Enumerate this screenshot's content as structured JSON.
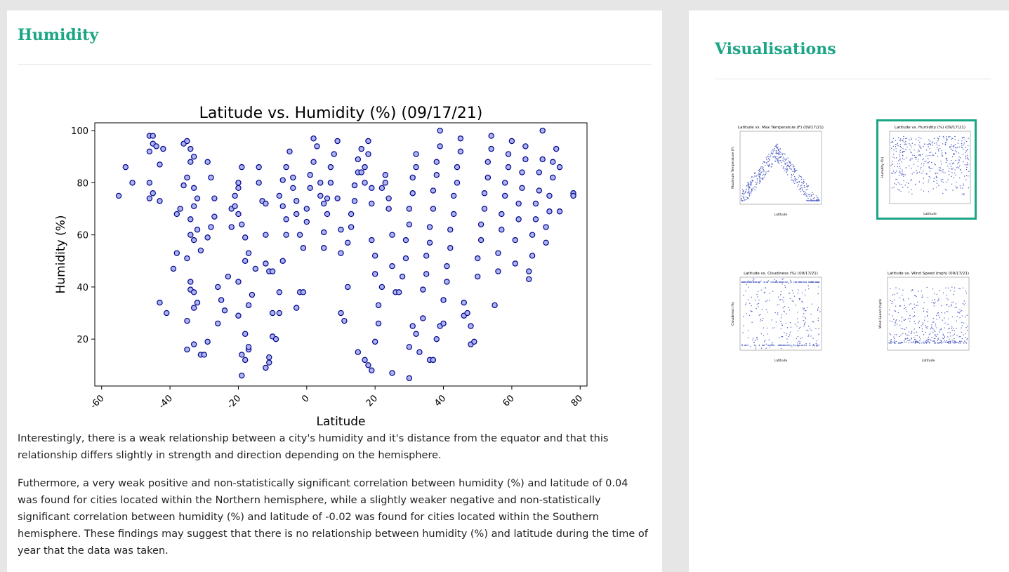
{
  "main": {
    "title": "Humidity",
    "paragraphs": [
      "Interestingly, there is a weak relationship between a city's humidity and it's distance from the equator and that this relationship differs slightly in strength and direction depending on the hemisphere.",
      "Futhermore, a very weak positive and non-statistically significant correlation between humidity (%) and latitude of 0.04 was found for cities located within the Northern hemisphere, while a slightly weaker negative and non-statistically significant correlation between humidity (%) and latitude of -0.02 was found for cities located within the Southern hemisphere. These findings may suggest that there is no relationship between humidity (%) and latitude during the time of year that the data was taken."
    ]
  },
  "sidebar": {
    "title": "Visualisations",
    "thumbnails": [
      {
        "title": "Latitude vs. Max Temperature (F) (09/17/21)",
        "ylabel": "Maximum Temperature (F)",
        "xlabel": "Latitude",
        "selected": false
      },
      {
        "title": "Latitude vs. Humidity (%) (09/17/21)",
        "ylabel": "Humidity (%)",
        "xlabel": "Latitude",
        "selected": true
      },
      {
        "title": "Latitude vs. Cloudiness (%) (09/17/21)",
        "ylabel": "Cloudiness (%)",
        "xlabel": "Latitude",
        "selected": false
      },
      {
        "title": "Latitude vs. Wind Speed (mph) (09/17/21)",
        "ylabel": "Wind Speed (mph)",
        "xlabel": "Latitude",
        "selected": false
      }
    ]
  },
  "colors": {
    "accent": "#1aa585",
    "marker_fill": "#aab4f0",
    "marker_edge": "#00008b",
    "thumb_marker": "#4a5bc4"
  },
  "chart_data": {
    "type": "scatter",
    "title": "Latitude vs. Humidity (%) (09/17/21)",
    "xlabel": "Latitude",
    "ylabel": "Humidity (%)",
    "xlim": [
      -62,
      82
    ],
    "ylim": [
      2,
      103
    ],
    "xticks": [
      -60,
      -40,
      -20,
      0,
      20,
      40,
      60,
      80
    ],
    "yticks": [
      20,
      40,
      60,
      80,
      100
    ],
    "grid": false,
    "points": [
      [
        -55,
        75
      ],
      [
        -53,
        86
      ],
      [
        -51,
        80
      ],
      [
        -46,
        98
      ],
      [
        -45,
        98
      ],
      [
        -45,
        95
      ],
      [
        -44,
        94
      ],
      [
        -46,
        92
      ],
      [
        -46,
        80
      ],
      [
        -45,
        76
      ],
      [
        -46,
        74
      ],
      [
        -43,
        87
      ],
      [
        -42,
        93
      ],
      [
        -43,
        73
      ],
      [
        -43,
        34
      ],
      [
        -41,
        30
      ],
      [
        -39,
        47
      ],
      [
        -38,
        53
      ],
      [
        -38,
        68
      ],
      [
        -37,
        70
      ],
      [
        -36,
        79
      ],
      [
        -36,
        95
      ],
      [
        -35,
        96
      ],
      [
        -34,
        93
      ],
      [
        -34,
        88
      ],
      [
        -35,
        82
      ],
      [
        -33,
        90
      ],
      [
        -33,
        78
      ],
      [
        -32,
        74
      ],
      [
        -33,
        71
      ],
      [
        -34,
        66
      ],
      [
        -34,
        60
      ],
      [
        -33,
        58
      ],
      [
        -32,
        62
      ],
      [
        -31,
        54
      ],
      [
        -35,
        51
      ],
      [
        -34,
        42
      ],
      [
        -34,
        39
      ],
      [
        -33,
        38
      ],
      [
        -35,
        27
      ],
      [
        -33,
        32
      ],
      [
        -32,
        34
      ],
      [
        -35,
        16
      ],
      [
        -33,
        18
      ],
      [
        -31,
        14
      ],
      [
        -30,
        14
      ],
      [
        -29,
        19
      ],
      [
        -29,
        59
      ],
      [
        -28,
        63
      ],
      [
        -28,
        82
      ],
      [
        -29,
        88
      ],
      [
        -27,
        74
      ],
      [
        -27,
        67
      ],
      [
        -26,
        26
      ],
      [
        -26,
        40
      ],
      [
        -25,
        35
      ],
      [
        -24,
        31
      ],
      [
        -23,
        44
      ],
      [
        -22,
        63
      ],
      [
        -22,
        70
      ],
      [
        -21,
        75
      ],
      [
        -21,
        71
      ],
      [
        -20,
        68
      ],
      [
        -20,
        80
      ],
      [
        -19,
        86
      ],
      [
        -20,
        78
      ],
      [
        -19,
        64
      ],
      [
        -18,
        59
      ],
      [
        -17,
        53
      ],
      [
        -18,
        50
      ],
      [
        -20,
        42
      ],
      [
        -20,
        29
      ],
      [
        -18,
        22
      ],
      [
        -17,
        16
      ],
      [
        -17,
        17
      ],
      [
        -18,
        12
      ],
      [
        -19,
        6
      ],
      [
        -19,
        14
      ],
      [
        -17,
        33
      ],
      [
        -16,
        37
      ],
      [
        -15,
        47
      ],
      [
        -14,
        86
      ],
      [
        -14,
        80
      ],
      [
        -13,
        73
      ],
      [
        -12,
        72
      ],
      [
        -12,
        60
      ],
      [
        -12,
        49
      ],
      [
        -11,
        46
      ],
      [
        -10,
        46
      ],
      [
        -10,
        30
      ],
      [
        -11,
        11
      ],
      [
        -11,
        13
      ],
      [
        -12,
        9
      ],
      [
        -10,
        21
      ],
      [
        -9,
        20
      ],
      [
        -8,
        30
      ],
      [
        -8,
        38
      ],
      [
        -7,
        50
      ],
      [
        -6,
        60
      ],
      [
        -6,
        66
      ],
      [
        -7,
        71
      ],
      [
        -8,
        75
      ],
      [
        -7,
        81
      ],
      [
        -6,
        86
      ],
      [
        -5,
        92
      ],
      [
        -4,
        82
      ],
      [
        -4,
        78
      ],
      [
        -3,
        73
      ],
      [
        -3,
        68
      ],
      [
        -2,
        60
      ],
      [
        -2,
        38
      ],
      [
        -3,
        32
      ],
      [
        -1,
        38
      ],
      [
        -1,
        55
      ],
      [
        0,
        65
      ],
      [
        0,
        70
      ],
      [
        1,
        78
      ],
      [
        1,
        83
      ],
      [
        2,
        88
      ],
      [
        2,
        97
      ],
      [
        3,
        94
      ],
      [
        4,
        80
      ],
      [
        4,
        75
      ],
      [
        5,
        72
      ],
      [
        5,
        55
      ],
      [
        5,
        61
      ],
      [
        6,
        68
      ],
      [
        6,
        74
      ],
      [
        7,
        80
      ],
      [
        7,
        86
      ],
      [
        8,
        91
      ],
      [
        9,
        96
      ],
      [
        9,
        74
      ],
      [
        10,
        62
      ],
      [
        10,
        53
      ],
      [
        10,
        30
      ],
      [
        11,
        27
      ],
      [
        12,
        40
      ],
      [
        12,
        57
      ],
      [
        13,
        63
      ],
      [
        13,
        68
      ],
      [
        14,
        73
      ],
      [
        14,
        79
      ],
      [
        15,
        84
      ],
      [
        15,
        89
      ],
      [
        16,
        93
      ],
      [
        16,
        84
      ],
      [
        17,
        80
      ],
      [
        17,
        86
      ],
      [
        18,
        91
      ],
      [
        18,
        96
      ],
      [
        19,
        78
      ],
      [
        19,
        72
      ],
      [
        19,
        58
      ],
      [
        20,
        52
      ],
      [
        20,
        45
      ],
      [
        15,
        15
      ],
      [
        17,
        12
      ],
      [
        18,
        10
      ],
      [
        19,
        8
      ],
      [
        20,
        19
      ],
      [
        21,
        26
      ],
      [
        21,
        33
      ],
      [
        22,
        40
      ],
      [
        22,
        78
      ],
      [
        23,
        80
      ],
      [
        23,
        83
      ],
      [
        24,
        74
      ],
      [
        24,
        70
      ],
      [
        25,
        60
      ],
      [
        25,
        48
      ],
      [
        25,
        7
      ],
      [
        26,
        38
      ],
      [
        27,
        38
      ],
      [
        28,
        44
      ],
      [
        29,
        51
      ],
      [
        29,
        58
      ],
      [
        30,
        64
      ],
      [
        30,
        70
      ],
      [
        31,
        76
      ],
      [
        31,
        82
      ],
      [
        32,
        86
      ],
      [
        32,
        91
      ],
      [
        30,
        5
      ],
      [
        30,
        17
      ],
      [
        31,
        25
      ],
      [
        32,
        22
      ],
      [
        33,
        15
      ],
      [
        34,
        28
      ],
      [
        34,
        39
      ],
      [
        35,
        45
      ],
      [
        35,
        52
      ],
      [
        36,
        57
      ],
      [
        36,
        63
      ],
      [
        37,
        70
      ],
      [
        37,
        77
      ],
      [
        38,
        83
      ],
      [
        38,
        88
      ],
      [
        39,
        94
      ],
      [
        39,
        100
      ],
      [
        36,
        12
      ],
      [
        37,
        12
      ],
      [
        38,
        20
      ],
      [
        39,
        25
      ],
      [
        40,
        26
      ],
      [
        40,
        35
      ],
      [
        41,
        42
      ],
      [
        41,
        48
      ],
      [
        42,
        55
      ],
      [
        42,
        62
      ],
      [
        43,
        68
      ],
      [
        43,
        75
      ],
      [
        44,
        80
      ],
      [
        44,
        86
      ],
      [
        45,
        92
      ],
      [
        45,
        97
      ],
      [
        46,
        29
      ],
      [
        46,
        34
      ],
      [
        47,
        30
      ],
      [
        48,
        25
      ],
      [
        48,
        18
      ],
      [
        49,
        19
      ],
      [
        50,
        44
      ],
      [
        50,
        51
      ],
      [
        51,
        58
      ],
      [
        51,
        64
      ],
      [
        52,
        70
      ],
      [
        52,
        76
      ],
      [
        53,
        82
      ],
      [
        53,
        88
      ],
      [
        54,
        93
      ],
      [
        54,
        98
      ],
      [
        55,
        33
      ],
      [
        56,
        46
      ],
      [
        56,
        53
      ],
      [
        57,
        62
      ],
      [
        57,
        68
      ],
      [
        58,
        75
      ],
      [
        58,
        80
      ],
      [
        59,
        86
      ],
      [
        59,
        91
      ],
      [
        60,
        96
      ],
      [
        61,
        49
      ],
      [
        61,
        58
      ],
      [
        62,
        66
      ],
      [
        62,
        72
      ],
      [
        63,
        78
      ],
      [
        63,
        84
      ],
      [
        64,
        89
      ],
      [
        64,
        94
      ],
      [
        65,
        43
      ],
      [
        65,
        46
      ],
      [
        66,
        52
      ],
      [
        66,
        60
      ],
      [
        67,
        66
      ],
      [
        67,
        72
      ],
      [
        68,
        77
      ],
      [
        68,
        84
      ],
      [
        69,
        89
      ],
      [
        69,
        100
      ],
      [
        70,
        57
      ],
      [
        70,
        63
      ],
      [
        71,
        69
      ],
      [
        71,
        75
      ],
      [
        72,
        82
      ],
      [
        72,
        88
      ],
      [
        73,
        93
      ],
      [
        74,
        69
      ],
      [
        74,
        86
      ],
      [
        78,
        76
      ],
      [
        78,
        75
      ]
    ]
  }
}
